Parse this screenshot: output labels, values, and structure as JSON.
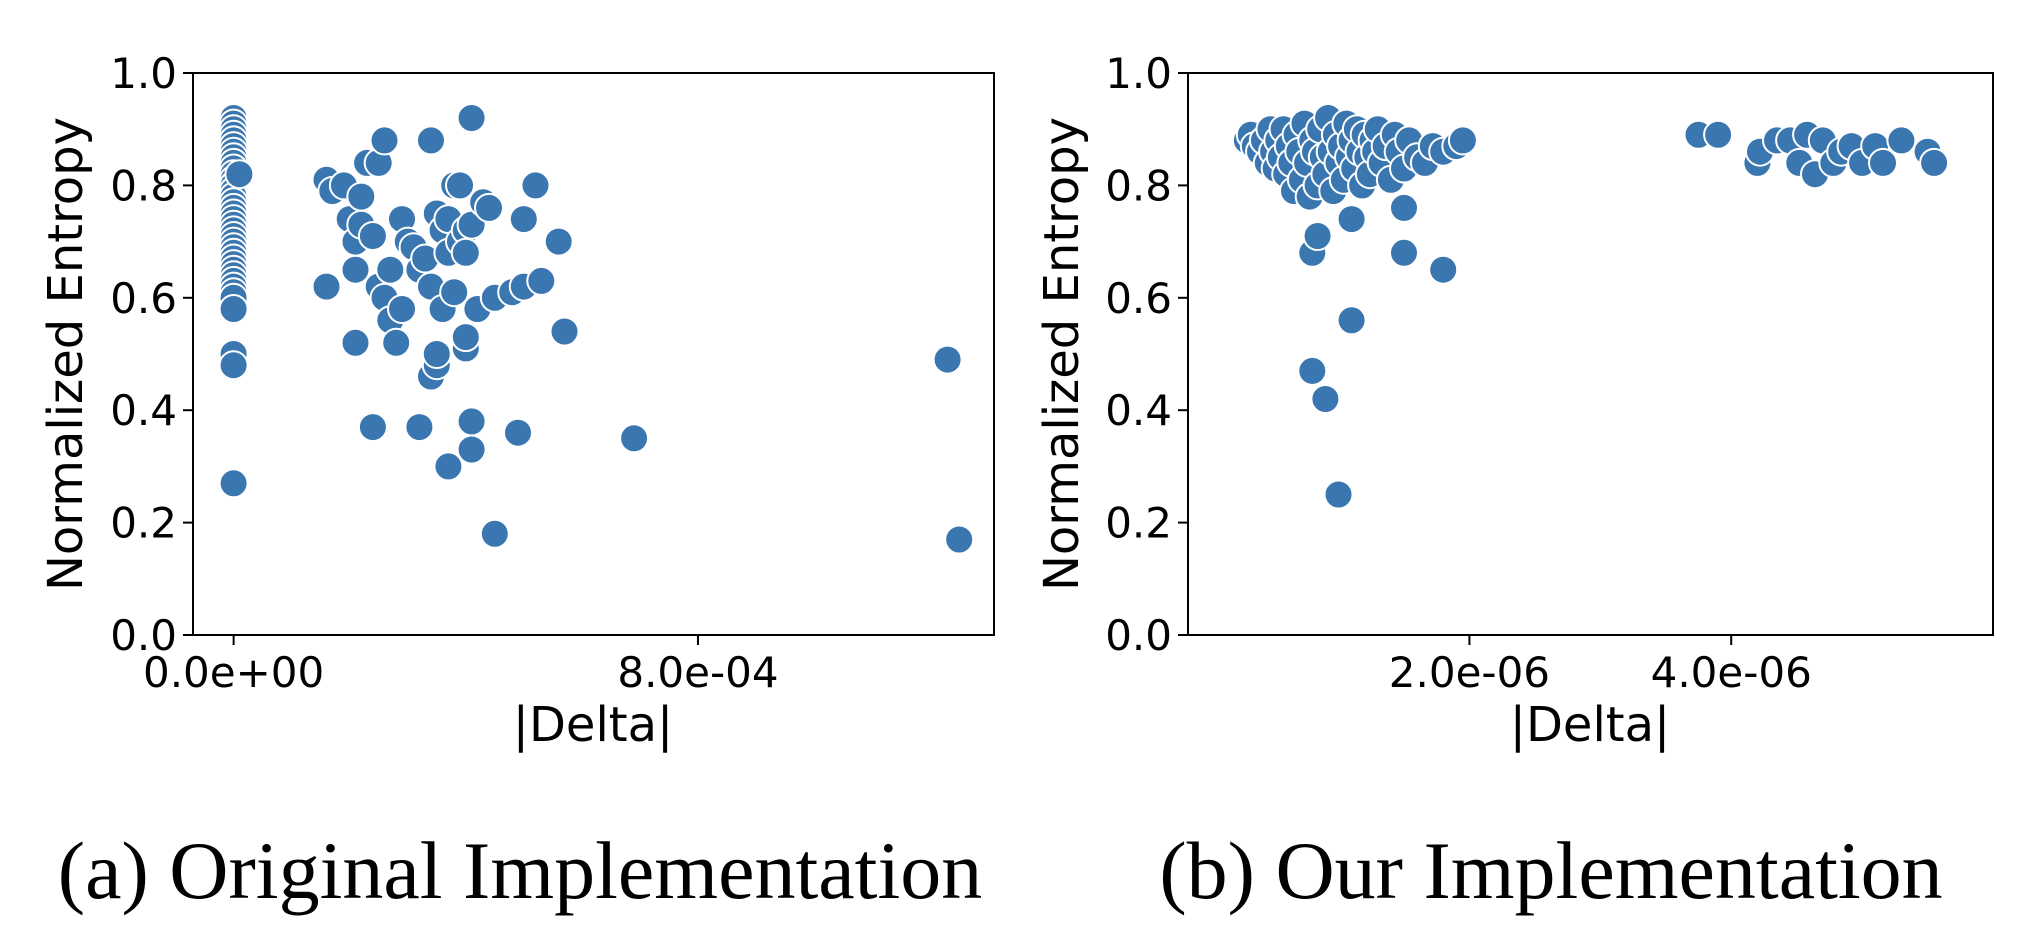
{
  "colors": {
    "marker": "#3a76b0",
    "marker_edge": "#ffffff",
    "axes": "#000000"
  },
  "chart_data": [
    {
      "type": "scatter",
      "caption": "(a) Original Implementation",
      "xlabel": "|Delta|",
      "ylabel": "Normalized Entropy",
      "xlim": [
        -7e-05,
        0.00131
      ],
      "ylim": [
        0.0,
        1.0
      ],
      "xticks": [
        0.0,
        0.0008
      ],
      "xtick_labels": [
        "0.0e+00",
        "8.0e-04"
      ],
      "yticks": [
        0.0,
        0.2,
        0.4,
        0.6,
        0.8,
        1.0
      ],
      "ytick_labels": [
        "0.0",
        "0.2",
        "0.4",
        "0.6",
        "0.8",
        "1.0"
      ],
      "grid": false,
      "legend": "none",
      "points": [
        [
          0.0,
          0.92
        ],
        [
          0.0,
          0.91
        ],
        [
          0.0,
          0.9
        ],
        [
          0.0,
          0.89
        ],
        [
          0.0,
          0.88
        ],
        [
          0.0,
          0.87
        ],
        [
          0.0,
          0.86
        ],
        [
          0.0,
          0.85
        ],
        [
          0.0,
          0.84
        ],
        [
          0.0,
          0.83
        ],
        [
          0.0,
          0.82
        ],
        [
          0.0,
          0.81
        ],
        [
          0.0,
          0.8
        ],
        [
          0.0,
          0.79
        ],
        [
          0.0,
          0.78
        ],
        [
          0.0,
          0.77
        ],
        [
          0.0,
          0.76
        ],
        [
          0.0,
          0.75
        ],
        [
          0.0,
          0.74
        ],
        [
          0.0,
          0.73
        ],
        [
          0.0,
          0.72
        ],
        [
          0.0,
          0.71
        ],
        [
          0.0,
          0.7
        ],
        [
          0.0,
          0.69
        ],
        [
          0.0,
          0.68
        ],
        [
          0.0,
          0.67
        ],
        [
          0.0,
          0.66
        ],
        [
          0.0,
          0.65
        ],
        [
          0.0,
          0.64
        ],
        [
          0.0,
          0.63
        ],
        [
          0.0,
          0.62
        ],
        [
          0.0,
          0.61
        ],
        [
          0.0,
          0.6
        ],
        [
          0.0,
          0.58
        ],
        [
          0.0,
          0.5
        ],
        [
          0.0,
          0.48
        ],
        [
          0.0,
          0.27
        ],
        [
          1e-05,
          0.82
        ],
        [
          0.00016,
          0.62
        ],
        [
          0.00016,
          0.81
        ],
        [
          0.00017,
          0.79
        ],
        [
          0.00019,
          0.8
        ],
        [
          0.0002,
          0.74
        ],
        [
          0.00021,
          0.52
        ],
        [
          0.00021,
          0.65
        ],
        [
          0.00021,
          0.7
        ],
        [
          0.00022,
          0.73
        ],
        [
          0.00022,
          0.78
        ],
        [
          0.00023,
          0.84
        ],
        [
          0.00024,
          0.71
        ],
        [
          0.00024,
          0.37
        ],
        [
          0.00025,
          0.84
        ],
        [
          0.00025,
          0.62
        ],
        [
          0.00026,
          0.88
        ],
        [
          0.00026,
          0.6
        ],
        [
          0.00027,
          0.65
        ],
        [
          0.00027,
          0.56
        ],
        [
          0.00028,
          0.52
        ],
        [
          0.00029,
          0.74
        ],
        [
          0.00029,
          0.58
        ],
        [
          0.0003,
          0.7
        ],
        [
          0.00031,
          0.69
        ],
        [
          0.00032,
          0.37
        ],
        [
          0.00032,
          0.65
        ],
        [
          0.00033,
          0.67
        ],
        [
          0.00034,
          0.88
        ],
        [
          0.00034,
          0.62
        ],
        [
          0.00034,
          0.46
        ],
        [
          0.00035,
          0.48
        ],
        [
          0.00035,
          0.5
        ],
        [
          0.00035,
          0.75
        ],
        [
          0.00036,
          0.72
        ],
        [
          0.00036,
          0.58
        ],
        [
          0.00037,
          0.3
        ],
        [
          0.00037,
          0.68
        ],
        [
          0.00037,
          0.74
        ],
        [
          0.00038,
          0.8
        ],
        [
          0.00038,
          0.61
        ],
        [
          0.00039,
          0.8
        ],
        [
          0.00039,
          0.7
        ],
        [
          0.0004,
          0.72
        ],
        [
          0.0004,
          0.51
        ],
        [
          0.0004,
          0.53
        ],
        [
          0.0004,
          0.68
        ],
        [
          0.00041,
          0.38
        ],
        [
          0.00041,
          0.73
        ],
        [
          0.00041,
          0.33
        ],
        [
          0.00041,
          0.92
        ],
        [
          0.00042,
          0.58
        ],
        [
          0.00043,
          0.77
        ],
        [
          0.00044,
          0.76
        ],
        [
          0.00045,
          0.6
        ],
        [
          0.00045,
          0.18
        ],
        [
          0.00048,
          0.61
        ],
        [
          0.00049,
          0.36
        ],
        [
          0.0005,
          0.62
        ],
        [
          0.0005,
          0.74
        ],
        [
          0.00052,
          0.8
        ],
        [
          0.00053,
          0.63
        ],
        [
          0.00056,
          0.7
        ],
        [
          0.00057,
          0.54
        ],
        [
          0.00069,
          0.35
        ],
        [
          0.00123,
          0.49
        ],
        [
          0.00125,
          0.17
        ]
      ]
    },
    {
      "type": "scatter",
      "caption": "(b) Our Implementation",
      "xlabel": "|Delta|",
      "ylabel": "Normalized Entropy",
      "xlim": [
        -1.5e-07,
        6e-06
      ],
      "ylim": [
        0.0,
        1.0
      ],
      "xticks": [
        2e-06,
        4e-06
      ],
      "xtick_labels": [
        "2.0e-06",
        "4.0e-06"
      ],
      "yticks": [
        0.0,
        0.2,
        0.4,
        0.6,
        0.8,
        1.0
      ],
      "ytick_labels": [
        "0.0",
        "0.2",
        "0.4",
        "0.6",
        "0.8",
        "1.0"
      ],
      "grid": false,
      "legend": "none",
      "points": [
        [
          3e-07,
          0.88
        ],
        [
          3.3e-07,
          0.89
        ],
        [
          3.6e-07,
          0.87
        ],
        [
          4e-07,
          0.86
        ],
        [
          4.3e-07,
          0.88
        ],
        [
          4.6e-07,
          0.84
        ],
        [
          4.8e-07,
          0.9
        ],
        [
          5e-07,
          0.86
        ],
        [
          5.2e-07,
          0.83
        ],
        [
          5.4e-07,
          0.88
        ],
        [
          5.6e-07,
          0.85
        ],
        [
          5.8e-07,
          0.9
        ],
        [
          6e-07,
          0.82
        ],
        [
          6.2e-07,
          0.87
        ],
        [
          6.4e-07,
          0.84
        ],
        [
          6.6e-07,
          0.79
        ],
        [
          6.8e-07,
          0.89
        ],
        [
          7e-07,
          0.86
        ],
        [
          7.2e-07,
          0.81
        ],
        [
          7.4e-07,
          0.91
        ],
        [
          7.6e-07,
          0.84
        ],
        [
          7.8e-07,
          0.78
        ],
        [
          8e-07,
          0.88
        ],
        [
          8.2e-07,
          0.86
        ],
        [
          8.4e-07,
          0.8
        ],
        [
          8.6e-07,
          0.9
        ],
        [
          8.8e-07,
          0.85
        ],
        [
          9e-07,
          0.82
        ],
        [
          9.2e-07,
          0.92
        ],
        [
          9.4e-07,
          0.86
        ],
        [
          9.6e-07,
          0.79
        ],
        [
          9.8e-07,
          0.89
        ],
        [
          1e-06,
          0.84
        ],
        [
          1.02e-06,
          0.87
        ],
        [
          1.04e-06,
          0.81
        ],
        [
          1.06e-06,
          0.91
        ],
        [
          1.08e-06,
          0.85
        ],
        [
          1.1e-06,
          0.88
        ],
        [
          1.12e-06,
          0.83
        ],
        [
          1.14e-06,
          0.9
        ],
        [
          1.16e-06,
          0.86
        ],
        [
          1.18e-06,
          0.8
        ],
        [
          1.2e-06,
          0.89
        ],
        [
          1.22e-06,
          0.85
        ],
        [
          1.24e-06,
          0.82
        ],
        [
          1.26e-06,
          0.88
        ],
        [
          1.28e-06,
          0.86
        ],
        [
          1.3e-06,
          0.9
        ],
        [
          1.33e-06,
          0.84
        ],
        [
          1.36e-06,
          0.87
        ],
        [
          1.4e-06,
          0.81
        ],
        [
          1.43e-06,
          0.89
        ],
        [
          1.46e-06,
          0.86
        ],
        [
          1.5e-06,
          0.83
        ],
        [
          1.54e-06,
          0.88
        ],
        [
          1.6e-06,
          0.85
        ],
        [
          1.66e-06,
          0.84
        ],
        [
          1.72e-06,
          0.87
        ],
        [
          1.8e-06,
          0.86
        ],
        [
          1.9e-06,
          0.87
        ],
        [
          1.95e-06,
          0.88
        ],
        [
          8e-07,
          0.68
        ],
        [
          8.4e-07,
          0.71
        ],
        [
          8e-07,
          0.47
        ],
        [
          9e-07,
          0.42
        ],
        [
          1e-06,
          0.25
        ],
        [
          1.1e-06,
          0.56
        ],
        [
          1.1e-06,
          0.74
        ],
        [
          1.5e-06,
          0.76
        ],
        [
          1.5e-06,
          0.68
        ],
        [
          1.8e-06,
          0.65
        ],
        [
          3.75e-06,
          0.89
        ],
        [
          3.9e-06,
          0.89
        ],
        [
          4.2e-06,
          0.84
        ],
        [
          4.22e-06,
          0.86
        ],
        [
          4.35e-06,
          0.88
        ],
        [
          4.45e-06,
          0.88
        ],
        [
          4.52e-06,
          0.84
        ],
        [
          4.58e-06,
          0.89
        ],
        [
          4.64e-06,
          0.82
        ],
        [
          4.7e-06,
          0.88
        ],
        [
          4.78e-06,
          0.84
        ],
        [
          4.84e-06,
          0.86
        ],
        [
          4.92e-06,
          0.87
        ],
        [
          5e-06,
          0.84
        ],
        [
          5.1e-06,
          0.87
        ],
        [
          5.16e-06,
          0.84
        ],
        [
          5.3e-06,
          0.88
        ],
        [
          5.5e-06,
          0.86
        ],
        [
          5.55e-06,
          0.84
        ]
      ]
    }
  ]
}
